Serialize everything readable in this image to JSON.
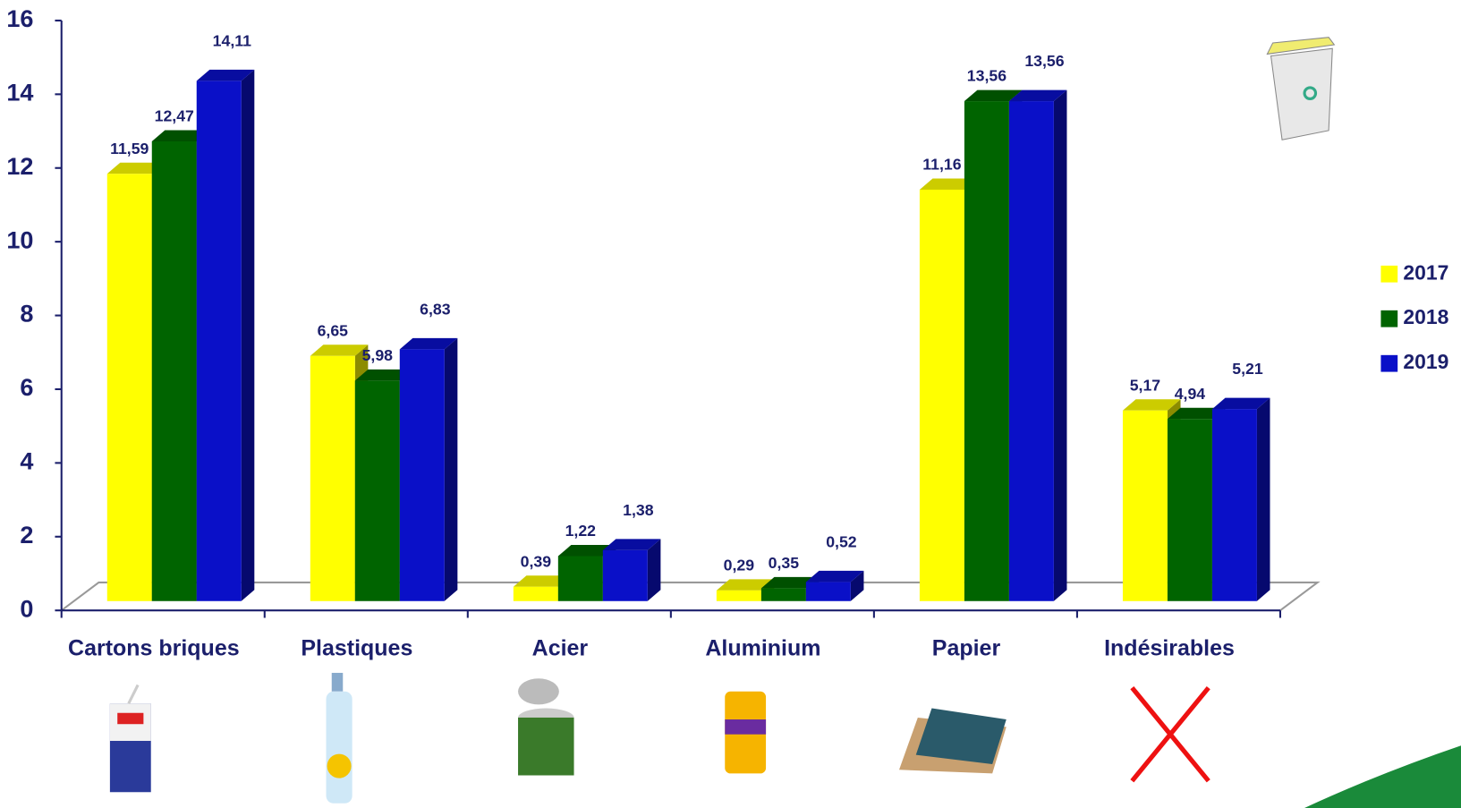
{
  "chart_data": {
    "type": "bar3d",
    "categories": [
      "Cartons briques",
      "Plastiques",
      "Acier",
      "Aluminium",
      "Papier",
      "Indésirables"
    ],
    "series": [
      {
        "name": "2017",
        "color": "#ffff00",
        "values": [
          11.59,
          6.65,
          0.39,
          0.29,
          11.16,
          5.17
        ],
        "value_labels": [
          "11,59",
          "6,65",
          "0,39",
          "0,29",
          "11,16",
          "5,17"
        ]
      },
      {
        "name": "2018",
        "color": "#006400",
        "values": [
          12.47,
          5.98,
          1.22,
          0.35,
          13.56,
          4.94
        ],
        "value_labels": [
          "12,47",
          "5,98",
          "1,22",
          "0,35",
          "13,56",
          "4,94"
        ]
      },
      {
        "name": "2019",
        "color": "#0a10c8",
        "values": [
          14.11,
          6.83,
          1.38,
          0.52,
          13.56,
          5.21
        ],
        "value_labels": [
          "14,11",
          "6,83",
          "1,38",
          "0,52",
          "13,56",
          "5,21"
        ]
      }
    ],
    "ylim": [
      0,
      16
    ],
    "yticks": [
      0,
      2,
      4,
      6,
      8,
      10,
      12,
      14,
      16
    ],
    "legend": "right"
  }
}
